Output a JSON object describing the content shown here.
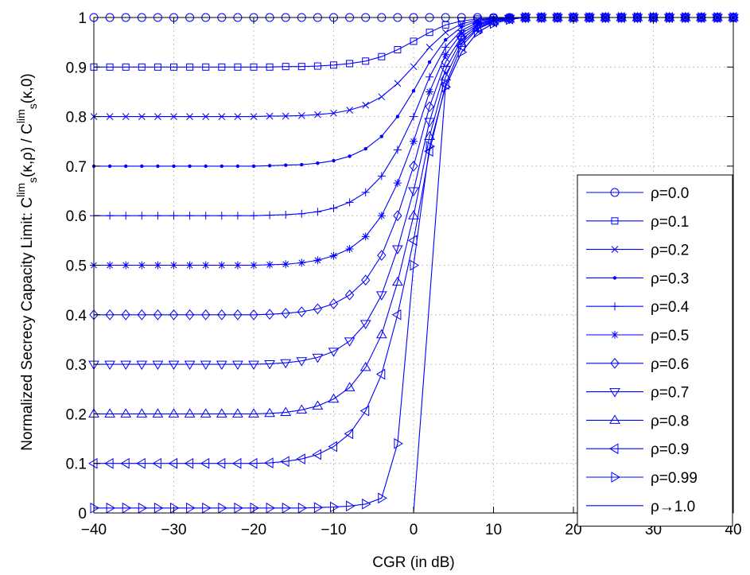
{
  "chart_data": {
    "type": "line",
    "title": "",
    "xlabel": "CGR (in dB)",
    "ylabel": {
      "prefix": "Normalized Secrecy Capacity Limit: C",
      "sub1": "s",
      "sup1": "lim",
      "mid": "(κ,ρ) / C",
      "sub2": "s",
      "sup2": "lim",
      "suffix": "(κ,0)"
    },
    "xlim": [
      -40,
      40
    ],
    "ylim": [
      0,
      1
    ],
    "xticks": [
      -40,
      -30,
      -20,
      -10,
      0,
      10,
      20,
      30,
      40
    ],
    "xtick_labels": [
      "−40",
      "−30",
      "−20",
      "−10",
      "0",
      "10",
      "20",
      "30",
      "40"
    ],
    "yticks": [
      0,
      0.1,
      0.2,
      0.3,
      0.4,
      0.5,
      0.6,
      0.7,
      0.8,
      0.9,
      1
    ],
    "ytick_labels": [
      "0",
      "0.1",
      "0.2",
      "0.3",
      "0.4",
      "0.5",
      "0.6",
      "0.7",
      "0.8",
      "0.9",
      "1"
    ],
    "grid": true,
    "legend_position": "right",
    "color": "#0000ff",
    "x_step": 2,
    "series": [
      {
        "name": "ρ=0.0",
        "marker": "circle",
        "values": [
          1,
          1,
          1,
          1,
          1,
          1,
          1,
          1,
          1,
          1,
          1,
          1,
          1,
          1,
          1,
          1,
          1,
          1,
          1,
          1,
          1,
          1,
          1,
          1,
          1,
          1,
          1,
          1,
          1,
          1,
          1,
          1,
          1,
          1,
          1,
          1,
          1,
          1,
          1,
          1,
          1
        ]
      },
      {
        "name": "ρ=0.1",
        "marker": "square",
        "values": [
          0.9,
          0.9,
          0.9,
          0.9,
          0.9,
          0.9,
          0.9,
          0.9,
          0.9,
          0.9,
          0.9,
          0.9,
          0.901,
          0.901,
          0.902,
          0.904,
          0.907,
          0.912,
          0.921,
          0.935,
          0.952,
          0.97,
          0.985,
          0.993,
          0.997,
          0.999,
          1,
          1,
          1,
          1,
          1,
          1,
          1,
          1,
          1,
          1,
          1,
          1,
          1,
          1,
          1
        ]
      },
      {
        "name": "ρ=0.2",
        "marker": "x",
        "values": [
          0.8,
          0.8,
          0.8,
          0.8,
          0.8,
          0.8,
          0.8,
          0.8,
          0.8,
          0.8,
          0.8,
          0.801,
          0.801,
          0.802,
          0.804,
          0.807,
          0.813,
          0.823,
          0.84,
          0.867,
          0.901,
          0.94,
          0.97,
          0.987,
          0.995,
          0.998,
          0.999,
          1,
          1,
          1,
          1,
          1,
          1,
          1,
          1,
          1,
          1,
          1,
          1,
          1,
          1
        ]
      },
      {
        "name": "ρ=0.3",
        "marker": "dot",
        "values": [
          0.7,
          0.7,
          0.7,
          0.7,
          0.7,
          0.7,
          0.7,
          0.7,
          0.7,
          0.7,
          0.7,
          0.701,
          0.702,
          0.703,
          0.706,
          0.711,
          0.72,
          0.735,
          0.76,
          0.8,
          0.852,
          0.91,
          0.955,
          0.981,
          0.993,
          0.997,
          0.999,
          1,
          1,
          1,
          1,
          1,
          1,
          1,
          1,
          1,
          1,
          1,
          1,
          1,
          1
        ]
      },
      {
        "name": "ρ=0.4",
        "marker": "plus",
        "values": [
          0.6,
          0.6,
          0.6,
          0.6,
          0.6,
          0.6,
          0.6,
          0.6,
          0.6,
          0.6,
          0.6,
          0.601,
          0.602,
          0.604,
          0.608,
          0.615,
          0.627,
          0.647,
          0.68,
          0.733,
          0.8,
          0.88,
          0.94,
          0.974,
          0.99,
          0.996,
          0.999,
          1,
          1,
          1,
          1,
          1,
          1,
          1,
          1,
          1,
          1,
          1,
          1,
          1,
          1
        ]
      },
      {
        "name": "ρ=0.5",
        "marker": "star",
        "values": [
          0.5,
          0.5,
          0.5,
          0.5,
          0.5,
          0.5,
          0.5,
          0.5,
          0.5,
          0.5,
          0.5,
          0.501,
          0.502,
          0.505,
          0.51,
          0.519,
          0.533,
          0.558,
          0.6,
          0.666,
          0.75,
          0.85,
          0.925,
          0.968,
          0.987,
          0.995,
          0.998,
          1,
          1,
          1,
          1,
          1,
          1,
          1,
          1,
          1,
          1,
          1,
          1,
          1,
          1
        ]
      },
      {
        "name": "ρ=0.6",
        "marker": "diamond",
        "values": [
          0.4,
          0.4,
          0.4,
          0.4,
          0.4,
          0.4,
          0.4,
          0.4,
          0.4,
          0.4,
          0.4,
          0.401,
          0.403,
          0.406,
          0.412,
          0.422,
          0.44,
          0.47,
          0.52,
          0.6,
          0.7,
          0.82,
          0.91,
          0.961,
          0.985,
          0.994,
          0.998,
          1,
          1,
          1,
          1,
          1,
          1,
          1,
          1,
          1,
          1,
          1,
          1,
          1,
          1
        ]
      },
      {
        "name": "ρ=0.7",
        "marker": "tri-down",
        "values": [
          0.3,
          0.3,
          0.3,
          0.3,
          0.3,
          0.3,
          0.3,
          0.3,
          0.3,
          0.3,
          0.3,
          0.301,
          0.303,
          0.307,
          0.314,
          0.326,
          0.347,
          0.382,
          0.44,
          0.533,
          0.65,
          0.79,
          0.895,
          0.955,
          0.982,
          0.993,
          0.998,
          1,
          1,
          1,
          1,
          1,
          1,
          1,
          1,
          1,
          1,
          1,
          1,
          1,
          1
        ]
      },
      {
        "name": "ρ=0.8",
        "marker": "tri-up",
        "values": [
          0.2,
          0.2,
          0.2,
          0.2,
          0.2,
          0.2,
          0.2,
          0.2,
          0.2,
          0.2,
          0.2,
          0.201,
          0.203,
          0.208,
          0.216,
          0.23,
          0.253,
          0.294,
          0.36,
          0.466,
          0.6,
          0.76,
          0.88,
          0.948,
          0.979,
          0.992,
          0.997,
          1,
          1,
          1,
          1,
          1,
          1,
          1,
          1,
          1,
          1,
          1,
          1,
          1,
          1
        ]
      },
      {
        "name": "ρ=0.9",
        "marker": "tri-left",
        "values": [
          0.1,
          0.1,
          0.1,
          0.1,
          0.1,
          0.1,
          0.1,
          0.1,
          0.1,
          0.1,
          0.1,
          0.101,
          0.104,
          0.109,
          0.118,
          0.134,
          0.16,
          0.206,
          0.28,
          0.4,
          0.55,
          0.73,
          0.865,
          0.942,
          0.977,
          0.991,
          0.997,
          1,
          1,
          1,
          1,
          1,
          1,
          1,
          1,
          1,
          1,
          1,
          1,
          1,
          1
        ]
      },
      {
        "name": "ρ=0.99",
        "marker": "tri-right",
        "values": [
          0.01,
          0.01,
          0.01,
          0.01,
          0.01,
          0.01,
          0.01,
          0.01,
          0.01,
          0.01,
          0.01,
          0.01,
          0.01,
          0.01,
          0.011,
          0.012,
          0.014,
          0.018,
          0.03,
          0.14,
          0.5,
          0.74,
          0.86,
          0.93,
          0.97,
          0.988,
          0.996,
          1,
          1,
          1,
          1,
          1,
          1,
          1,
          1,
          1,
          1,
          1,
          1,
          1,
          1
        ]
      },
      {
        "name": "ρ→1.0",
        "marker": "none",
        "values": [
          0,
          0,
          0,
          0,
          0,
          0,
          0,
          0,
          0,
          0,
          0,
          0,
          0,
          0,
          0,
          0,
          0,
          0,
          0,
          0,
          0,
          0,
          0.86,
          0.93,
          0.97,
          0.988,
          0.996,
          1,
          1,
          1,
          1,
          1,
          1,
          1,
          1,
          1,
          1,
          1,
          1,
          1,
          1
        ],
        "step_at_x": 0
      }
    ]
  }
}
